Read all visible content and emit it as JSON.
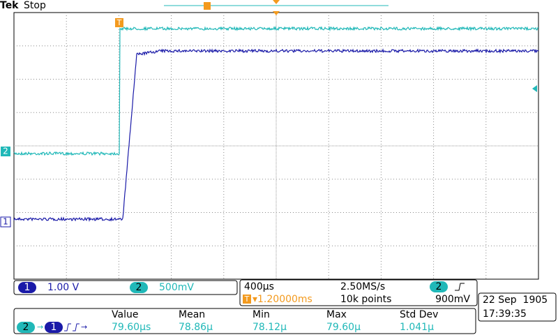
{
  "header": {
    "brand": "Tek",
    "status": "Stop"
  },
  "channels": [
    {
      "label": "1",
      "scale": "1.00 V"
    },
    {
      "label": "2",
      "scale": "500mV"
    }
  ],
  "timebase": {
    "scale": "400µs",
    "sample_rate": "2.50MS/s",
    "trigger_marker": "T",
    "trigger_position": "▾1.20000ms",
    "record_length": "10k points",
    "trigger_source": "2",
    "trigger_level": "900mV"
  },
  "measurement": {
    "source": "2",
    "target": "1",
    "headers": [
      "Value",
      "Mean",
      "Min",
      "Max",
      "Std Dev"
    ],
    "values": [
      "79.60µs",
      "78.86µ",
      "78.12µ",
      "79.60µ",
      "1.041µ"
    ]
  },
  "datetime": {
    "date": "22 Sep  1905",
    "time": "17:39:35"
  }
}
